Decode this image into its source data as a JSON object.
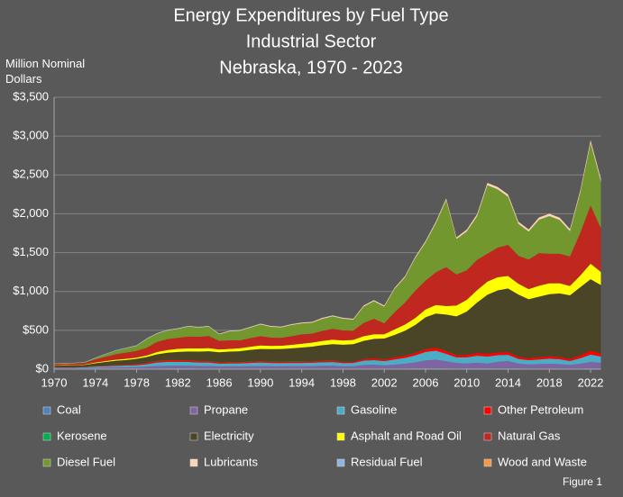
{
  "chart_data": {
    "type": "stacked_area",
    "title": "Energy Expenditures by Fuel Type",
    "subtitle": [
      "Industrial Sector",
      "Nebraska, 1970 - 2023"
    ],
    "y_label": "Million Nominal Dollars",
    "note": "Figure 1",
    "legend": "bottom",
    "grid": true,
    "xlim": [
      1970,
      2023
    ],
    "xticks": [
      1970,
      1974,
      1978,
      1982,
      1986,
      1990,
      1994,
      1998,
      2002,
      2006,
      2010,
      2014,
      2018,
      2022
    ],
    "ylim": [
      0,
      3500
    ],
    "yticks": [
      {
        "value": 0,
        "label": "$0"
      },
      {
        "value": 500,
        "label": "$500"
      },
      {
        "value": 1000,
        "label": "$1,000"
      },
      {
        "value": 1500,
        "label": "$1,500"
      },
      {
        "value": 2000,
        "label": "$2,000"
      },
      {
        "value": 2500,
        "label": "$2,500"
      },
      {
        "value": 3000,
        "label": "$3,000"
      },
      {
        "value": 3500,
        "label": "$3,500"
      }
    ],
    "x": [
      1970,
      1971,
      1972,
      1973,
      1974,
      1975,
      1976,
      1977,
      1978,
      1979,
      1980,
      1981,
      1982,
      1983,
      1984,
      1985,
      1986,
      1987,
      1988,
      1989,
      1990,
      1991,
      1992,
      1993,
      1994,
      1995,
      1996,
      1997,
      1998,
      1999,
      2000,
      2001,
      2002,
      2003,
      2004,
      2005,
      2006,
      2007,
      2008,
      2009,
      2010,
      2011,
      2012,
      2013,
      2014,
      2015,
      2016,
      2017,
      2018,
      2019,
      2020,
      2021,
      2022,
      2023
    ],
    "series": [
      {
        "name": "Coal",
        "color": "#4f81bd",
        "values": [
          5,
          5,
          5,
          5,
          6,
          6,
          6,
          6,
          6,
          7,
          10,
          12,
          12,
          12,
          10,
          10,
          8,
          8,
          8,
          8,
          8,
          8,
          8,
          8,
          8,
          8,
          8,
          8,
          8,
          8,
          8,
          8,
          8,
          10,
          10,
          12,
          12,
          12,
          12,
          10,
          12,
          12,
          12,
          14,
          14,
          12,
          10,
          10,
          10,
          10,
          10,
          10,
          12,
          12
        ]
      },
      {
        "name": "Propane",
        "color": "#8064a2",
        "values": [
          8,
          8,
          8,
          9,
          12,
          14,
          16,
          18,
          20,
          25,
          30,
          32,
          32,
          32,
          30,
          30,
          28,
          28,
          28,
          30,
          32,
          30,
          30,
          32,
          32,
          32,
          35,
          35,
          30,
          30,
          45,
          50,
          40,
          50,
          60,
          75,
          100,
          110,
          90,
          70,
          60,
          70,
          60,
          80,
          90,
          60,
          50,
          55,
          60,
          55,
          45,
          60,
          80,
          70
        ]
      },
      {
        "name": "Gasoline",
        "color": "#4bacc6",
        "values": [
          8,
          8,
          8,
          10,
          15,
          18,
          20,
          22,
          25,
          32,
          45,
          50,
          50,
          48,
          45,
          45,
          35,
          38,
          38,
          42,
          45,
          42,
          40,
          40,
          40,
          42,
          45,
          48,
          40,
          42,
          55,
          58,
          55,
          65,
          75,
          90,
          110,
          115,
          95,
          70,
          80,
          90,
          90,
          85,
          80,
          60,
          55,
          60,
          65,
          62,
          50,
          70,
          95,
          80
        ]
      },
      {
        "name": "Other Petroleum",
        "color": "#ff0000",
        "values": [
          3,
          3,
          3,
          4,
          6,
          8,
          9,
          10,
          12,
          15,
          18,
          20,
          20,
          18,
          18,
          18,
          15,
          15,
          15,
          16,
          18,
          16,
          15,
          16,
          16,
          16,
          18,
          18,
          15,
          15,
          20,
          22,
          20,
          25,
          28,
          30,
          35,
          38,
          35,
          28,
          30,
          35,
          35,
          35,
          35,
          28,
          25,
          28,
          30,
          28,
          25,
          35,
          50,
          40
        ]
      },
      {
        "name": "Kerosene",
        "color": "#00b050",
        "values": [
          1,
          1,
          1,
          1,
          2,
          2,
          2,
          2,
          2,
          3,
          3,
          3,
          3,
          3,
          3,
          3,
          2,
          2,
          2,
          2,
          2,
          2,
          2,
          2,
          2,
          2,
          2,
          2,
          1,
          1,
          1,
          1,
          1,
          1,
          1,
          1,
          1,
          1,
          1,
          1,
          0,
          0,
          0,
          0,
          0,
          0,
          0,
          0,
          0,
          0,
          0,
          0,
          0,
          0
        ]
      },
      {
        "name": "Electricity",
        "color": "#4a4526",
        "values": [
          20,
          22,
          24,
          26,
          35,
          45,
          55,
          60,
          68,
          75,
          85,
          95,
          105,
          115,
          120,
          125,
          130,
          135,
          140,
          150,
          155,
          160,
          165,
          170,
          180,
          190,
          200,
          210,
          220,
          225,
          235,
          250,
          270,
          290,
          320,
          360,
          410,
          440,
          470,
          500,
          560,
          650,
          760,
          800,
          820,
          800,
          760,
          780,
          800,
          820,
          820,
          880,
          920,
          880
        ]
      },
      {
        "name": "Asphalt and Road Oil",
        "color": "#ffff00",
        "values": [
          5,
          5,
          5,
          6,
          10,
          12,
          14,
          15,
          16,
          20,
          30,
          35,
          40,
          40,
          40,
          40,
          35,
          35,
          38,
          40,
          45,
          42,
          42,
          45,
          50,
          52,
          55,
          58,
          55,
          55,
          60,
          60,
          55,
          70,
          80,
          90,
          100,
          110,
          110,
          140,
          150,
          160,
          170,
          170,
          160,
          140,
          130,
          140,
          140,
          130,
          120,
          150,
          200,
          170
        ]
      },
      {
        "name": "Natural Gas",
        "color": "#c0271e",
        "values": [
          15,
          18,
          20,
          22,
          40,
          55,
          70,
          80,
          85,
          100,
          130,
          140,
          140,
          150,
          150,
          155,
          110,
          110,
          100,
          110,
          120,
          105,
          100,
          110,
          120,
          115,
          130,
          140,
          130,
          120,
          170,
          200,
          140,
          220,
          280,
          350,
          370,
          420,
          500,
          400,
          380,
          390,
          360,
          380,
          400,
          360,
          380,
          420,
          380,
          380,
          380,
          550,
          750,
          560
        ]
      },
      {
        "name": "Diesel Fuel",
        "color": "#71972e",
        "values": [
          3,
          3,
          3,
          5,
          15,
          30,
          45,
          55,
          65,
          110,
          105,
          110,
          115,
          130,
          120,
          120,
          85,
          115,
          125,
          135,
          150,
          140,
          135,
          145,
          140,
          140,
          155,
          160,
          150,
          140,
          210,
          225,
          215,
          300,
          325,
          420,
          490,
          630,
          860,
          455,
          500,
          560,
          880,
          750,
          620,
          410,
          360,
          430,
          485,
          435,
          325,
          515,
          800,
          600
        ]
      },
      {
        "name": "Lubricants",
        "color": "#fbd5b5",
        "values": [
          2,
          2,
          2,
          2,
          3,
          3,
          4,
          4,
          5,
          5,
          6,
          6,
          7,
          7,
          7,
          8,
          8,
          8,
          8,
          9,
          10,
          10,
          10,
          10,
          11,
          11,
          12,
          12,
          12,
          12,
          14,
          14,
          14,
          15,
          16,
          18,
          20,
          22,
          25,
          22,
          25,
          28,
          30,
          30,
          30,
          28,
          28,
          30,
          30,
          30,
          28,
          32,
          40,
          38
        ]
      },
      {
        "name": "Residual Fuel",
        "color": "#8eb4e3",
        "values": [
          4,
          4,
          4,
          4,
          5,
          5,
          5,
          5,
          5,
          6,
          5,
          5,
          4,
          3,
          3,
          3,
          2,
          2,
          2,
          2,
          2,
          1,
          1,
          1,
          1,
          1,
          1,
          1,
          1,
          1,
          1,
          1,
          1,
          1,
          1,
          0,
          0,
          0,
          0,
          0,
          0,
          0,
          0,
          0,
          0,
          0,
          0,
          0,
          0,
          0,
          0,
          0,
          0,
          0
        ]
      },
      {
        "name": "Wood and Waste",
        "color": "#f79646",
        "values": [
          0,
          0,
          0,
          0,
          0,
          0,
          0,
          0,
          0,
          0,
          0,
          0,
          0,
          0,
          0,
          0,
          0,
          0,
          0,
          0,
          0,
          0,
          0,
          0,
          0,
          0,
          0,
          0,
          0,
          0,
          1,
          1,
          1,
          1,
          1,
          1,
          1,
          1,
          1,
          1,
          1,
          1,
          1,
          1,
          1,
          1,
          1,
          1,
          1,
          1,
          1,
          1,
          1,
          1
        ]
      }
    ]
  }
}
